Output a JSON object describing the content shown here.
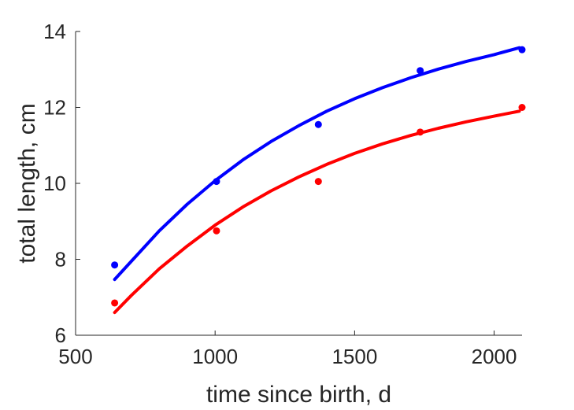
{
  "chart_data": {
    "type": "scatter",
    "title": "",
    "xlabel": "time since birth, d",
    "ylabel": "total length, cm",
    "xlim": [
      500,
      2100
    ],
    "ylim": [
      6,
      14
    ],
    "xticks": [
      500,
      1000,
      1500,
      2000
    ],
    "yticks": [
      6,
      8,
      10,
      12,
      14
    ],
    "grid": false,
    "legend": "none",
    "series": [
      {
        "color": "#0000ff",
        "points": {
          "x": [
            640,
            1005,
            1370,
            1735,
            2100
          ],
          "y": [
            7.85,
            10.05,
            11.55,
            12.97,
            13.52
          ]
        },
        "fit": {
          "x": [
            640,
            700,
            800,
            900,
            1000,
            1100,
            1200,
            1300,
            1400,
            1500,
            1600,
            1700,
            1800,
            1900,
            2000,
            2090
          ],
          "y": [
            7.47,
            7.95,
            8.75,
            9.45,
            10.07,
            10.62,
            11.1,
            11.52,
            11.9,
            12.23,
            12.52,
            12.78,
            13.01,
            13.21,
            13.39,
            13.57
          ]
        }
      },
      {
        "color": "#ff0000",
        "points": {
          "x": [
            640,
            1005,
            1370,
            1735,
            2100
          ],
          "y": [
            6.85,
            8.75,
            10.05,
            11.35,
            12.0
          ]
        },
        "fit": {
          "x": [
            640,
            700,
            800,
            900,
            1000,
            1100,
            1200,
            1300,
            1400,
            1500,
            1600,
            1700,
            1800,
            1900,
            2000,
            2090
          ],
          "y": [
            6.6,
            7.05,
            7.75,
            8.35,
            8.9,
            9.38,
            9.8,
            10.17,
            10.5,
            10.79,
            11.04,
            11.26,
            11.45,
            11.62,
            11.77,
            11.9
          ]
        }
      }
    ]
  }
}
